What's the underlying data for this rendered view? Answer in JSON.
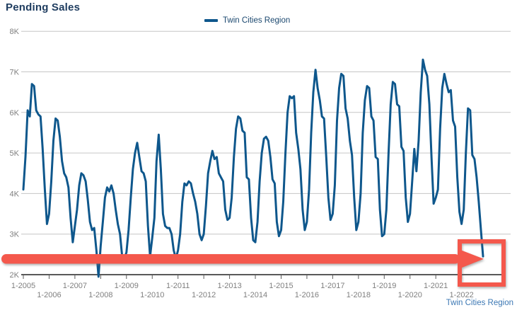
{
  "title": "Pending Sales",
  "legend": {
    "label": "Twin Cities Region"
  },
  "footer": {
    "label": "Twin Cities Region"
  },
  "colors": {
    "line": "#0e578c",
    "annotation_red": "#f4584c",
    "grid": "#c6c6c6",
    "axis": "#595959",
    "tick_text": "#7f7f7f",
    "title_text": "#1e3c5f",
    "footer_text": "#3c78b4",
    "legend_text": "#1b486f"
  },
  "chart_data": {
    "type": "line",
    "title": "Pending Sales",
    "series_name": "Twin Cities Region",
    "start_month": "2005-01",
    "end_month": "2022-11",
    "frequency": "monthly",
    "ylim": [
      2000,
      8000
    ],
    "grid": "horizontal",
    "legend_position": "top-center",
    "y_tick_labels": [
      "8K",
      "7K",
      "6K",
      "5K",
      "4K",
      "3K",
      "2K"
    ],
    "x_tick_labels": [
      "1-2005",
      "1-2006",
      "1-2007",
      "1-2008",
      "1-2009",
      "1-2010",
      "1-2011",
      "1-2012",
      "1-2013",
      "1-2014",
      "1-2015",
      "1-2016",
      "1-2017",
      "1-2018",
      "1-2019",
      "1-2020",
      "1-2021",
      "1-2022"
    ],
    "annotation": {
      "shape": "thick-arrow-pointing-right-into-highlight-box",
      "meaning": "highlights steep drop in pending sales at end of series"
    },
    "values": [
      4100,
      4900,
      6050,
      5900,
      6700,
      6650,
      6050,
      5950,
      5900,
      5100,
      4100,
      3250,
      3500,
      4300,
      5300,
      5850,
      5800,
      5400,
      4800,
      4500,
      4400,
      4150,
      3400,
      2800,
      3200,
      3600,
      4200,
      4500,
      4450,
      4300,
      3850,
      3300,
      3100,
      3150,
      2600,
      1950,
      2700,
      3300,
      3900,
      4150,
      4050,
      4200,
      4000,
      3600,
      3250,
      3000,
      2450,
      2400,
      2550,
      3100,
      3900,
      4600,
      5000,
      5250,
      4900,
      4550,
      4500,
      4300,
      3200,
      2450,
      2900,
      3400,
      4800,
      5450,
      4600,
      3500,
      3200,
      3150,
      3150,
      3000,
      2600,
      2400,
      2600,
      3000,
      3800,
      4250,
      4200,
      4300,
      4250,
      4000,
      3800,
      3500,
      3000,
      2850,
      3000,
      3700,
      4500,
      4800,
      5050,
      4850,
      4900,
      4500,
      4400,
      4300,
      3600,
      3350,
      3400,
      3900,
      4900,
      5600,
      5900,
      5850,
      5550,
      5500,
      4400,
      4350,
      3400,
      2850,
      2800,
      3300,
      4300,
      5000,
      5350,
      5400,
      5300,
      4900,
      4350,
      4250,
      3300,
      2950,
      3100,
      3800,
      5000,
      6000,
      6400,
      6350,
      6400,
      5500,
      5100,
      4600,
      3600,
      3100,
      3300,
      4100,
      5500,
      6500,
      7050,
      6600,
      6300,
      5900,
      5850,
      4900,
      3900,
      3350,
      3500,
      4200,
      5800,
      6600,
      6950,
      6900,
      6100,
      5850,
      5300,
      4950,
      3900,
      3100,
      3300,
      4000,
      5500,
      6300,
      6650,
      6600,
      5900,
      5800,
      4900,
      4850,
      3600,
      2950,
      3000,
      3600,
      5000,
      6200,
      6750,
      6700,
      6200,
      6150,
      5150,
      5050,
      3900,
      3300,
      3500,
      4300,
      5100,
      4550,
      5300,
      6500,
      7300,
      7050,
      6900,
      6200,
      4900,
      3750,
      3900,
      4100,
      5600,
      6600,
      6950,
      6700,
      6500,
      6550,
      5800,
      5650,
      4400,
      3550,
      3250,
      3600,
      5000,
      6100,
      6050,
      4950,
      4850,
      4400,
      3800,
      3100,
      2450
    ]
  }
}
